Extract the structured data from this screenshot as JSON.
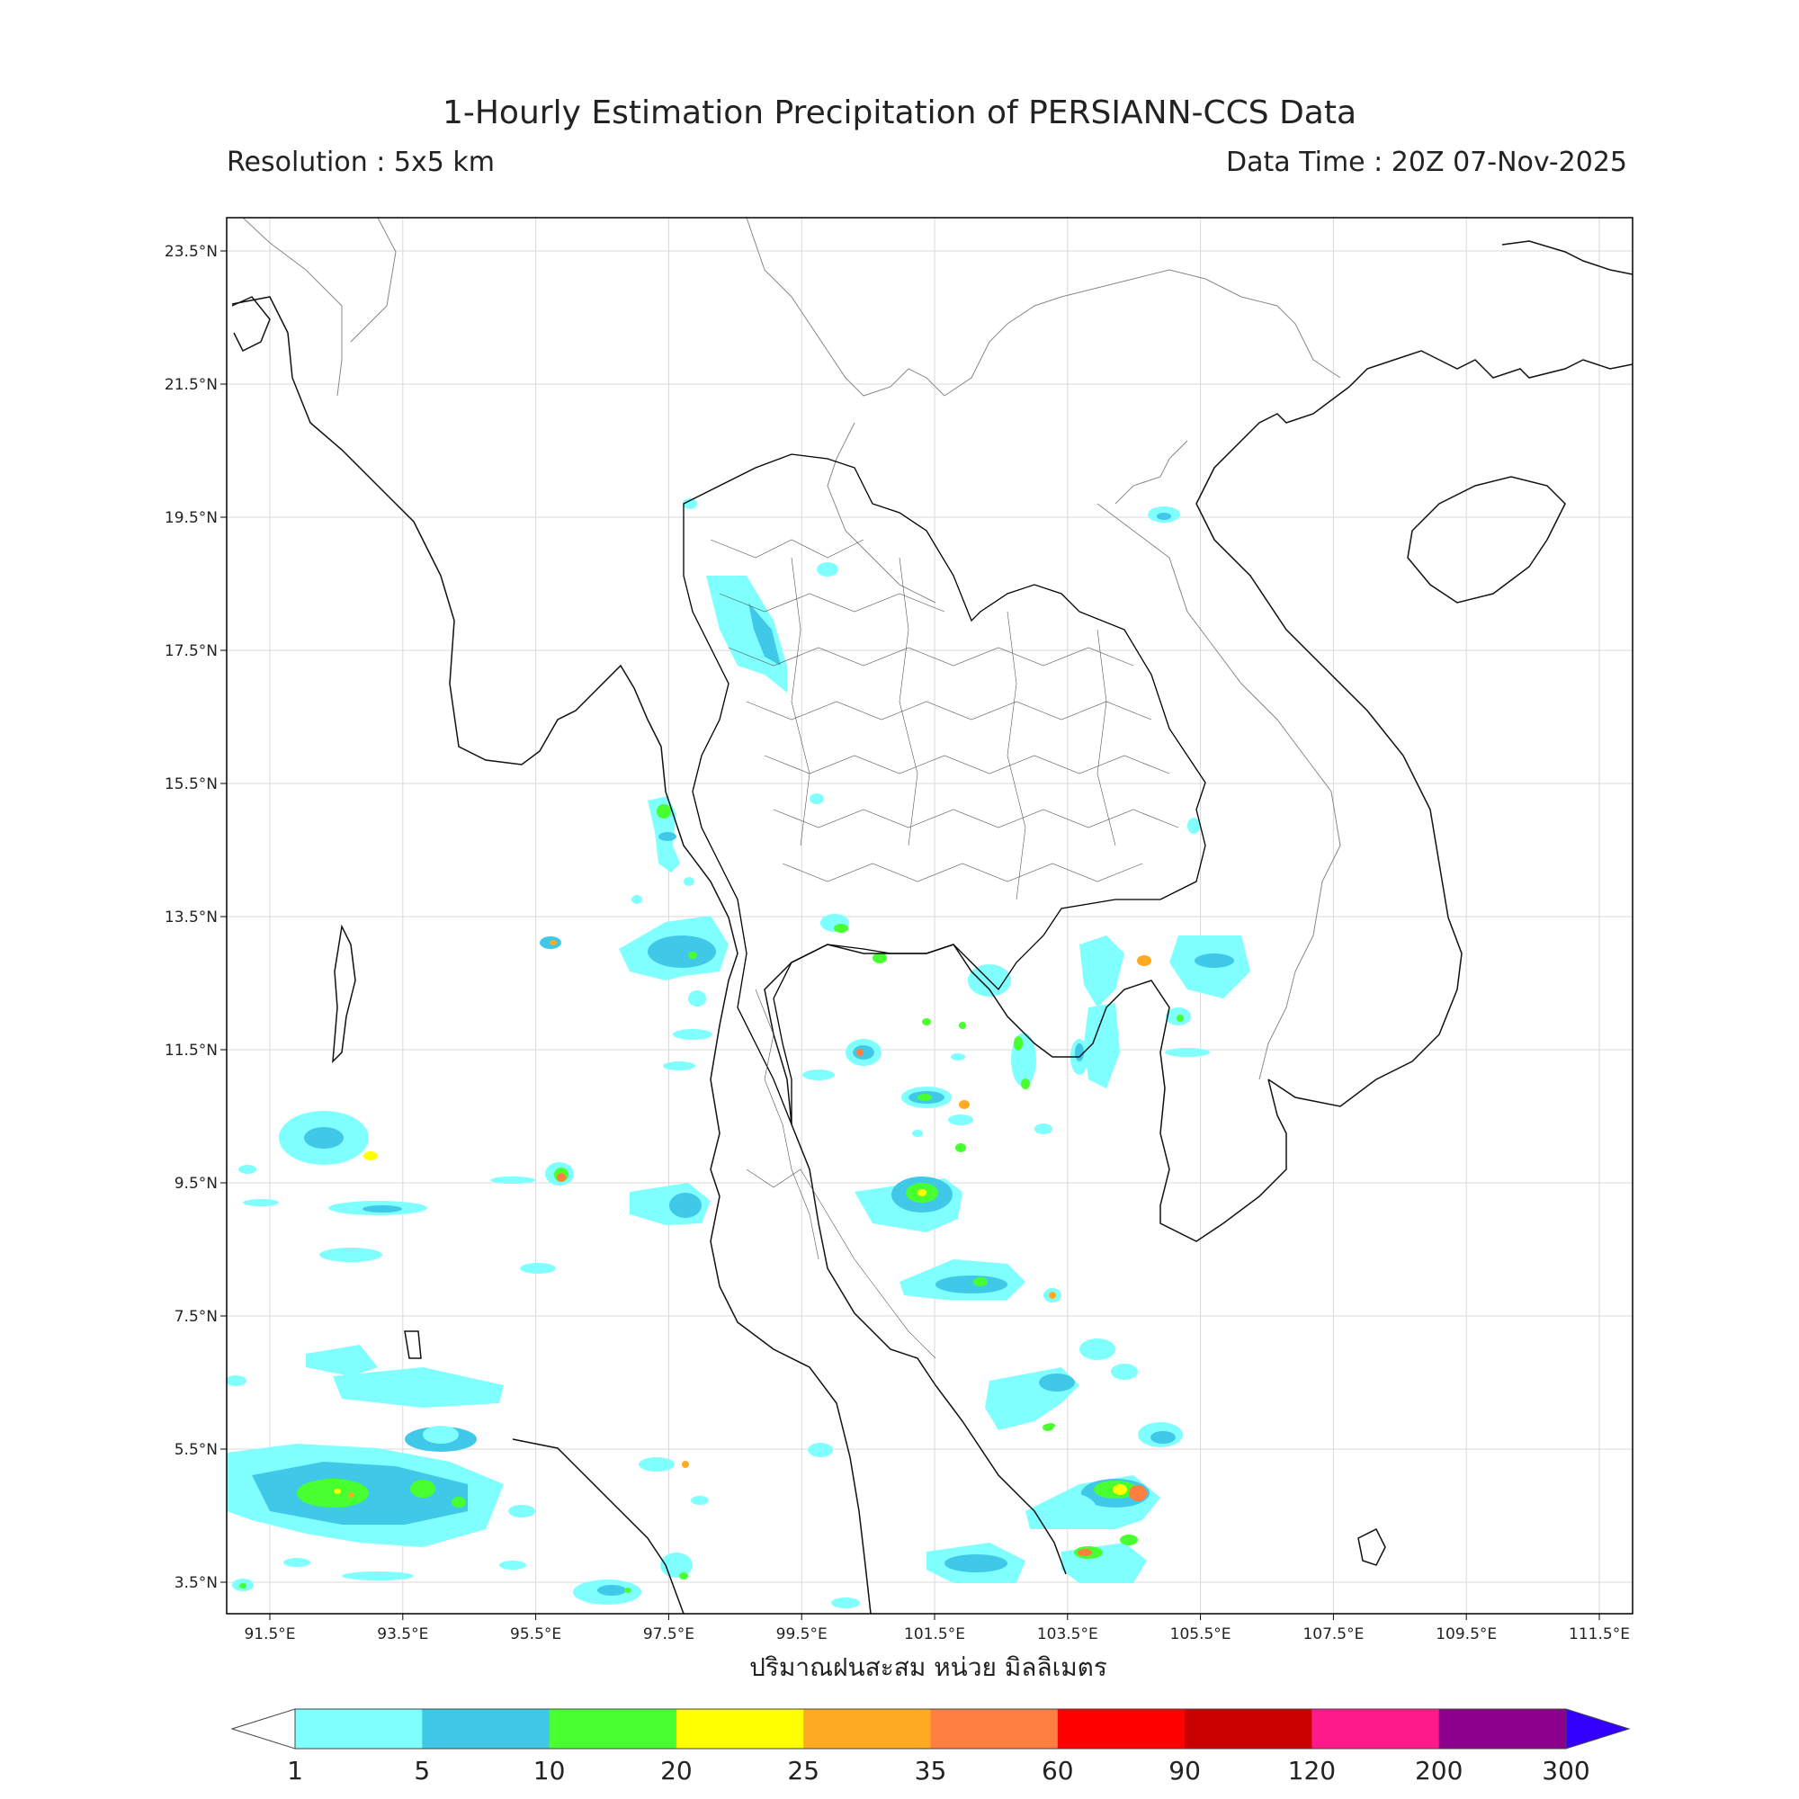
{
  "title": "1-Hourly Estimation Precipitation of PERSIANN-CCS Data",
  "resolution_label": "Resolution : 5x5 km",
  "data_time_label": "Data Time : 20Z 07-Nov-2025",
  "x_axis_label": "ปริมาณฝนสะสม หน่วย มิลลิเมตร",
  "map": {
    "lon_ticks": [
      "91.5°E",
      "93.5°E",
      "95.5°E",
      "97.5°E",
      "99.5°E",
      "101.5°E",
      "103.5°E",
      "105.5°E",
      "107.5°E",
      "109.5°E",
      "111.5°E"
    ],
    "lat_ticks": [
      "23.5°N",
      "21.5°N",
      "19.5°N",
      "17.5°N",
      "15.5°N",
      "13.5°N",
      "11.5°N",
      "9.5°N",
      "7.5°N",
      "5.5°N",
      "3.5°N"
    ],
    "grid": true
  },
  "colorbar": {
    "ticks": [
      "1",
      "5",
      "10",
      "20",
      "25",
      "35",
      "60",
      "90",
      "120",
      "200",
      "300"
    ],
    "colors": [
      "#80ffff",
      "#40c8e8",
      "#48ff30",
      "#ffff00",
      "#ffaa20",
      "#ff7f40",
      "#ff0000",
      "#c80000",
      "#ff1a8c",
      "#8c008c"
    ],
    "over_color": "#3300ff",
    "under_color": "#ffffff"
  }
}
